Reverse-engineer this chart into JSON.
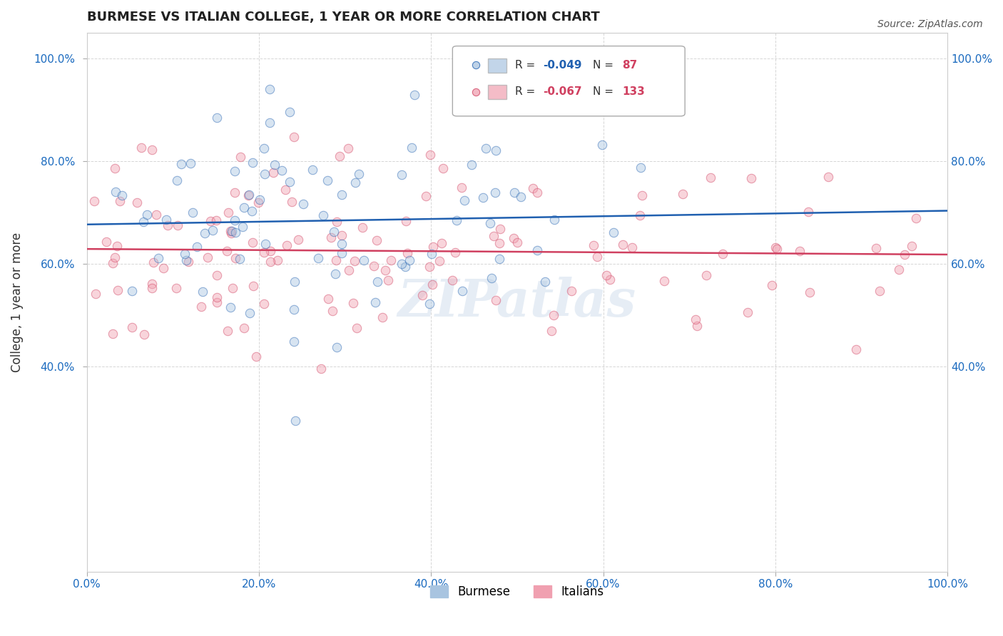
{
  "title": "BURMESE VS ITALIAN COLLEGE, 1 YEAR OR MORE CORRELATION CHART",
  "source": "Source: ZipAtlas.com",
  "ylabel": "College, 1 year or more",
  "xlabel": "",
  "burmese_R": -0.049,
  "burmese_N": 87,
  "italian_R": -0.067,
  "italian_N": 133,
  "burmese_color": "#a8c4e0",
  "burmese_line_color": "#2060b0",
  "italian_color": "#f0a0b0",
  "italian_line_color": "#d04060",
  "background_color": "#ffffff",
  "grid_color": "#cccccc",
  "title_color": "#222222",
  "axis_label_color": "#1a6abf",
  "watermark": "ZIPatlas",
  "xmin": 0.0,
  "xmax": 1.0,
  "ymin": 0.0,
  "ymax": 1.05,
  "xticks": [
    0.0,
    0.2,
    0.4,
    0.6,
    0.8,
    1.0
  ],
  "yticks": [
    0.4,
    0.6,
    0.8,
    1.0
  ],
  "xtick_labels": [
    "0.0%",
    "20.0%",
    "40.0%",
    "60.0%",
    "80.0%",
    "100.0%"
  ],
  "ytick_labels": [
    "40.0%",
    "60.0%",
    "80.0%",
    "100.0%"
  ],
  "marker_size": 80,
  "marker_alpha": 0.45,
  "line_width": 1.8,
  "burmese_seed": 42,
  "italian_seed": 123
}
